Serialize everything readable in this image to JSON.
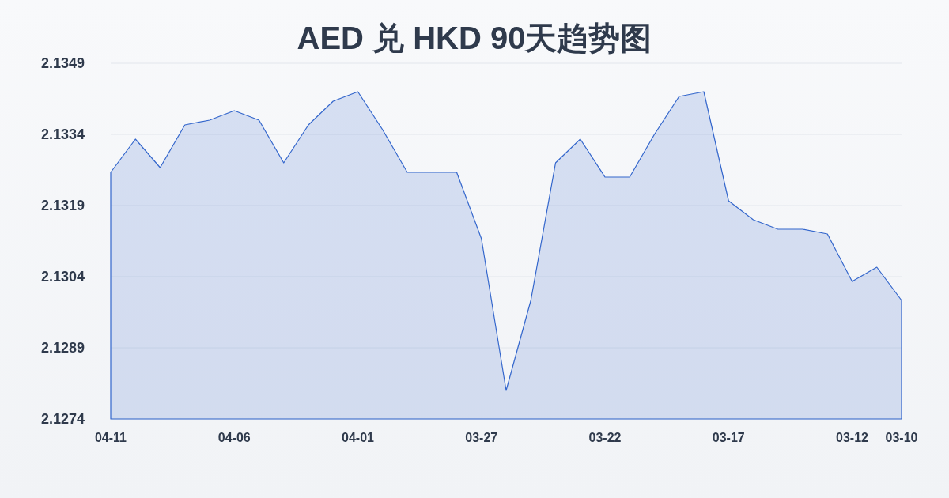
{
  "chart_data": {
    "type": "area",
    "title": "AED 兑 HKD 90天趋势图",
    "categories": [
      "04-11",
      null,
      null,
      null,
      null,
      "04-06",
      null,
      null,
      null,
      null,
      "04-01",
      null,
      null,
      null,
      null,
      "03-27",
      null,
      null,
      null,
      null,
      "03-22",
      null,
      null,
      null,
      null,
      "03-17",
      null,
      null,
      null,
      null,
      "03-12",
      null,
      "03-10"
    ],
    "values": [
      2.1326,
      2.1333,
      2.1327,
      2.1336,
      2.1337,
      2.1339,
      2.1337,
      2.1328,
      2.1336,
      2.1341,
      2.1343,
      2.1335,
      2.1326,
      2.1326,
      2.1326,
      2.1312,
      2.128,
      2.1299,
      2.1328,
      2.1333,
      2.1325,
      2.1325,
      2.1334,
      2.1342,
      2.1343,
      2.132,
      2.1316,
      2.1314,
      2.1314,
      2.1313,
      2.1303,
      2.1306,
      2.1299
    ],
    "color": "#3366cc",
    "ylim": [
      2.1274,
      2.1349
    ],
    "yticks": [
      2.1274,
      2.1289,
      2.1304,
      2.1319,
      2.1334,
      2.1349
    ],
    "grid": "y"
  }
}
